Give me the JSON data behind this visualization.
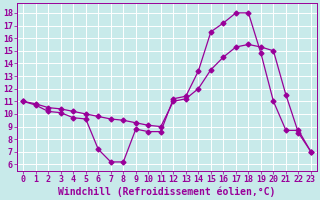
{
  "xlabel": "Windchill (Refroidissement éolien,°C)",
  "background_color": "#c8eaea",
  "line_color": "#990099",
  "grid_color": "#ffffff",
  "xlim": [
    -0.5,
    23.5
  ],
  "ylim": [
    5.5,
    18.8
  ],
  "yticks": [
    6,
    7,
    8,
    9,
    10,
    11,
    12,
    13,
    14,
    15,
    16,
    17,
    18
  ],
  "xticks": [
    0,
    1,
    2,
    3,
    4,
    5,
    6,
    7,
    8,
    9,
    10,
    11,
    12,
    13,
    14,
    15,
    16,
    17,
    18,
    19,
    20,
    21,
    22,
    23
  ],
  "line1_x": [
    0,
    1,
    2,
    3,
    4,
    5,
    6,
    7,
    8,
    9,
    10,
    11,
    12,
    13,
    14,
    15,
    16,
    17,
    18,
    19,
    20,
    21,
    22,
    23
  ],
  "line1_y": [
    11,
    10.7,
    10.2,
    10.1,
    9.7,
    9.6,
    7.2,
    6.2,
    6.2,
    8.8,
    8.6,
    8.6,
    11.2,
    11.4,
    13.4,
    16.5,
    17.2,
    18.0,
    18.0,
    14.8,
    11.0,
    8.7,
    8.7,
    7.0
  ],
  "line2_x": [
    0,
    1,
    2,
    3,
    4,
    5,
    6,
    7,
    8,
    9,
    10,
    11,
    12,
    13,
    14,
    15,
    16,
    17,
    18,
    19,
    20,
    21,
    22,
    23
  ],
  "line2_y": [
    11,
    10.8,
    10.5,
    10.4,
    10.2,
    10.0,
    9.8,
    9.6,
    9.5,
    9.3,
    9.1,
    9.0,
    11.0,
    11.2,
    12.0,
    13.5,
    14.5,
    15.3,
    15.5,
    15.3,
    15.0,
    11.5,
    8.5,
    7.0
  ],
  "marker": "D",
  "marker_size": 2.5,
  "line_width": 0.9,
  "font_family": "monospace",
  "xlabel_fontsize": 7.0,
  "tick_fontsize": 6.0
}
